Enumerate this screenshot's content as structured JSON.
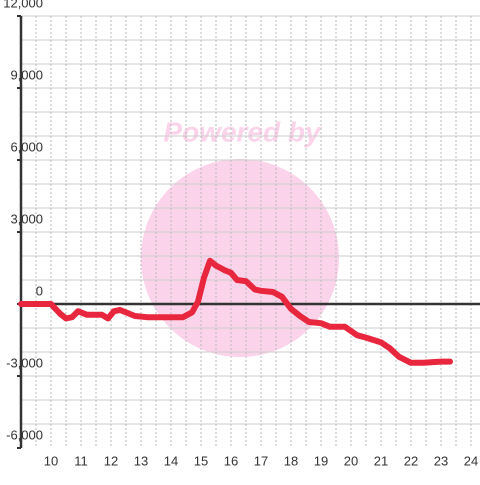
{
  "chart_data": {
    "type": "line",
    "watermark": "Powered by",
    "x": [
      9,
      10,
      10.3,
      10.5,
      10.7,
      10.9,
      11.2,
      11.7,
      11.9,
      12.1,
      12.3,
      12.5,
      12.8,
      13.2,
      14.0,
      14.4,
      14.7,
      14.9,
      15.1,
      15.3,
      15.5,
      15.8,
      16.0,
      16.2,
      16.5,
      16.8,
      17.0,
      17.4,
      17.7,
      18.0,
      18.3,
      18.6,
      19.0,
      19.3,
      19.8,
      20.2,
      20.5,
      21.0,
      21.3,
      21.6,
      22.0,
      22.4,
      23.0,
      23.3
    ],
    "series": [
      {
        "color": "#e8273f",
        "values": [
          0,
          0,
          -400,
          -600,
          -550,
          -300,
          -450,
          -450,
          -600,
          -300,
          -250,
          -350,
          -500,
          -550,
          -550,
          -550,
          -350,
          100,
          1100,
          1800,
          1600,
          1400,
          1300,
          1000,
          950,
          600,
          550,
          500,
          300,
          -200,
          -500,
          -750,
          -800,
          -950,
          -950,
          -1300,
          -1400,
          -1600,
          -1850,
          -2200,
          -2450,
          -2450,
          -2400,
          -2400
        ]
      }
    ],
    "xlim": [
      9,
      24.3
    ],
    "xticks": [
      10,
      11,
      12,
      13,
      14,
      15,
      16,
      17,
      18,
      19,
      20,
      21,
      22,
      23,
      24
    ],
    "xgrid": [
      9.5,
      10,
      10.5,
      11,
      11.5,
      12,
      12.5,
      13,
      13.5,
      14,
      14.5,
      15,
      15.5,
      16,
      16.5,
      17,
      17.5,
      18,
      18.5,
      19,
      19.5,
      20,
      20.5,
      21,
      21.5,
      22,
      22.5,
      23,
      23.5,
      24
    ],
    "ylim": [
      -6000,
      12000
    ],
    "yticks": [
      {
        "value": 12000,
        "label": "12,000"
      },
      {
        "value": 9000,
        "label": "9,000"
      },
      {
        "value": 6000,
        "label": "6,000"
      },
      {
        "value": 3000,
        "label": "3,000"
      },
      0,
      {
        "value": -3000,
        "label": "-3,000"
      },
      {
        "value": -6000,
        "label": "-6,000"
      }
    ],
    "ygrid": [
      -5000,
      -4000,
      -3000,
      -2000,
      -1000,
      1000,
      2000,
      3000,
      4000,
      5000,
      6000,
      7000,
      8000,
      9000,
      10000,
      11000,
      12000
    ]
  }
}
